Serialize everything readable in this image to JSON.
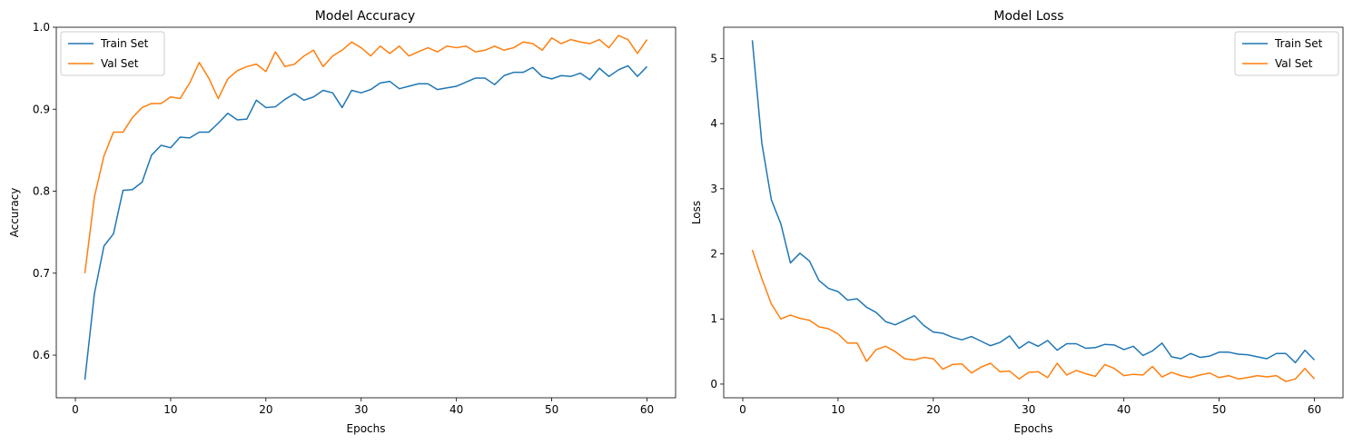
{
  "chart_data": [
    {
      "type": "line",
      "title": "Model Accuracy",
      "xlabel": "Epochs",
      "ylabel": "Accuracy",
      "xlim": [
        -2.0,
        63.0
      ],
      "ylim": [
        0.548,
        1.0
      ],
      "xticks": [
        0,
        10,
        20,
        30,
        40,
        50,
        60
      ],
      "yticks": [
        0.6,
        0.7,
        0.8,
        0.9,
        1.0
      ],
      "ytick_labels": [
        "0.6",
        "0.7",
        "0.8",
        "0.9",
        "1.0"
      ],
      "legend_position": "upper-left",
      "x": [
        1,
        2,
        3,
        4,
        5,
        6,
        7,
        8,
        9,
        10,
        11,
        12,
        13,
        14,
        15,
        16,
        17,
        18,
        19,
        20,
        21,
        22,
        23,
        24,
        25,
        26,
        27,
        28,
        29,
        30,
        31,
        32,
        33,
        34,
        35,
        36,
        37,
        38,
        39,
        40,
        41,
        42,
        43,
        44,
        45,
        46,
        47,
        48,
        49,
        50,
        51,
        52,
        53,
        54,
        55,
        56,
        57,
        58,
        59,
        60
      ],
      "series": [
        {
          "name": "Train Set",
          "color": "#1f77b4",
          "values": [
            0.57,
            0.675,
            0.733,
            0.748,
            0.801,
            0.802,
            0.811,
            0.844,
            0.856,
            0.853,
            0.866,
            0.865,
            0.872,
            0.872,
            0.883,
            0.895,
            0.887,
            0.888,
            0.911,
            0.902,
            0.903,
            0.912,
            0.919,
            0.911,
            0.915,
            0.923,
            0.92,
            0.902,
            0.923,
            0.92,
            0.924,
            0.932,
            0.934,
            0.925,
            0.928,
            0.931,
            0.931,
            0.924,
            0.926,
            0.928,
            0.933,
            0.938,
            0.938,
            0.93,
            0.941,
            0.945,
            0.945,
            0.951,
            0.94,
            0.937,
            0.941,
            0.94,
            0.944,
            0.936,
            0.95,
            0.94,
            0.948,
            0.953,
            0.94,
            0.952
          ]
        },
        {
          "name": "Val Set",
          "color": "#ff7f0e",
          "values": [
            0.7,
            0.793,
            0.843,
            0.872,
            0.872,
            0.89,
            0.902,
            0.907,
            0.907,
            0.915,
            0.913,
            0.932,
            0.957,
            0.938,
            0.913,
            0.937,
            0.947,
            0.952,
            0.955,
            0.946,
            0.97,
            0.952,
            0.955,
            0.965,
            0.972,
            0.952,
            0.965,
            0.972,
            0.982,
            0.975,
            0.965,
            0.977,
            0.968,
            0.977,
            0.965,
            0.97,
            0.975,
            0.97,
            0.977,
            0.975,
            0.977,
            0.97,
            0.972,
            0.977,
            0.972,
            0.975,
            0.982,
            0.98,
            0.972,
            0.987,
            0.98,
            0.985,
            0.982,
            0.98,
            0.985,
            0.975,
            0.99,
            0.985,
            0.968,
            0.985
          ]
        }
      ]
    },
    {
      "type": "line",
      "title": "Model Loss",
      "xlabel": "Epochs",
      "ylabel": "Loss",
      "xlim": [
        -2.0,
        63.0
      ],
      "ylim": [
        -0.21,
        5.48
      ],
      "xticks": [
        0,
        10,
        20,
        30,
        40,
        50,
        60
      ],
      "yticks": [
        0,
        1,
        2,
        3,
        4,
        5
      ],
      "ytick_labels": [
        "0",
        "1",
        "2",
        "3",
        "4",
        "5"
      ],
      "legend_position": "upper-right",
      "x": [
        1,
        2,
        3,
        4,
        5,
        6,
        7,
        8,
        9,
        10,
        11,
        12,
        13,
        14,
        15,
        16,
        17,
        18,
        19,
        20,
        21,
        22,
        23,
        24,
        25,
        26,
        27,
        28,
        29,
        30,
        31,
        32,
        33,
        34,
        35,
        36,
        37,
        38,
        39,
        40,
        41,
        42,
        43,
        44,
        45,
        46,
        47,
        48,
        49,
        50,
        51,
        52,
        53,
        54,
        55,
        56,
        57,
        58,
        59,
        60
      ],
      "series": [
        {
          "name": "Train Set",
          "color": "#1f77b4",
          "values": [
            5.28,
            3.7,
            2.83,
            2.46,
            1.86,
            2.01,
            1.89,
            1.59,
            1.47,
            1.42,
            1.29,
            1.31,
            1.18,
            1.1,
            0.96,
            0.91,
            0.98,
            1.05,
            0.9,
            0.8,
            0.78,
            0.72,
            0.68,
            0.73,
            0.66,
            0.59,
            0.64,
            0.74,
            0.55,
            0.65,
            0.58,
            0.67,
            0.52,
            0.62,
            0.62,
            0.55,
            0.56,
            0.61,
            0.6,
            0.53,
            0.58,
            0.44,
            0.51,
            0.63,
            0.42,
            0.39,
            0.47,
            0.41,
            0.43,
            0.49,
            0.49,
            0.46,
            0.45,
            0.42,
            0.39,
            0.47,
            0.47,
            0.33,
            0.52,
            0.37
          ]
        },
        {
          "name": "Val Set",
          "color": "#ff7f0e",
          "values": [
            2.06,
            1.62,
            1.23,
            1.0,
            1.06,
            1.01,
            0.98,
            0.88,
            0.85,
            0.77,
            0.63,
            0.63,
            0.35,
            0.53,
            0.58,
            0.5,
            0.39,
            0.37,
            0.41,
            0.39,
            0.23,
            0.3,
            0.31,
            0.17,
            0.26,
            0.32,
            0.19,
            0.2,
            0.08,
            0.18,
            0.19,
            0.1,
            0.32,
            0.14,
            0.21,
            0.16,
            0.12,
            0.3,
            0.24,
            0.13,
            0.15,
            0.14,
            0.27,
            0.11,
            0.18,
            0.13,
            0.1,
            0.14,
            0.17,
            0.1,
            0.13,
            0.08,
            0.1,
            0.13,
            0.11,
            0.13,
            0.04,
            0.08,
            0.24,
            0.08
          ]
        }
      ]
    }
  ]
}
